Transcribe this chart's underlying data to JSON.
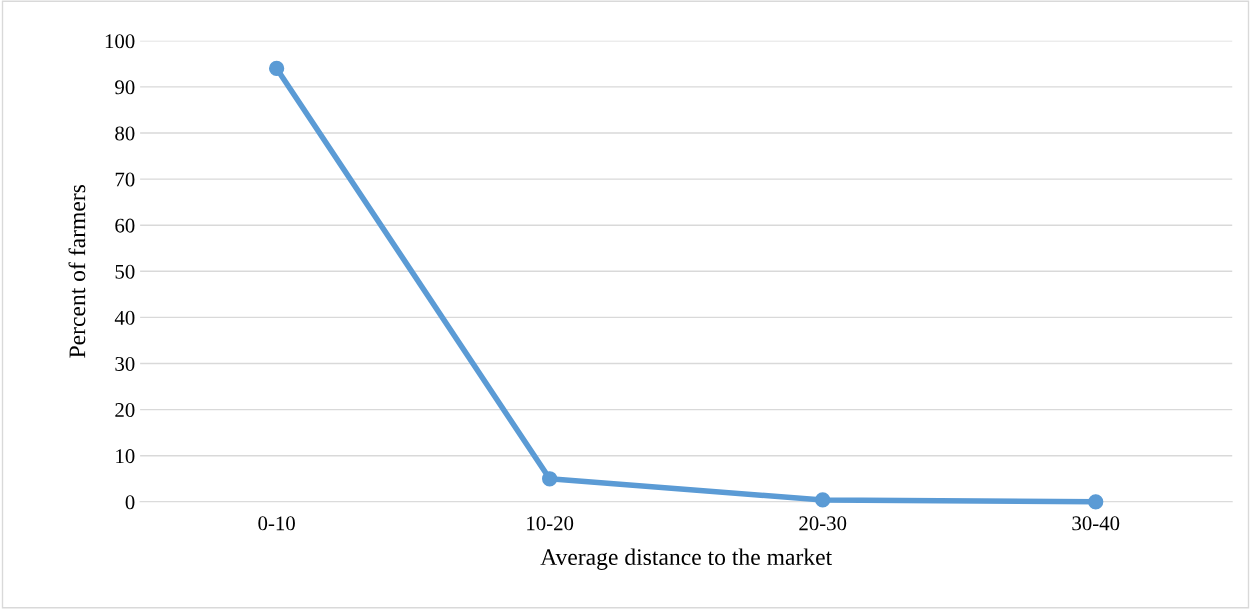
{
  "chart_data": {
    "type": "line",
    "xlabel": "Average distance to the market",
    "ylabel": "Percent of farmers",
    "categories": [
      "0-10",
      "10-20",
      "20-30",
      "30-40"
    ],
    "series": [
      {
        "color": "#5b9bd5",
        "values": [
          94,
          5,
          0.4,
          0
        ]
      }
    ],
    "ylim": [
      0,
      100
    ],
    "yticks": [
      0,
      10,
      20,
      30,
      40,
      50,
      60,
      70,
      80,
      90,
      100
    ],
    "grid": "y",
    "marker": "circle",
    "line_style": "solid"
  }
}
